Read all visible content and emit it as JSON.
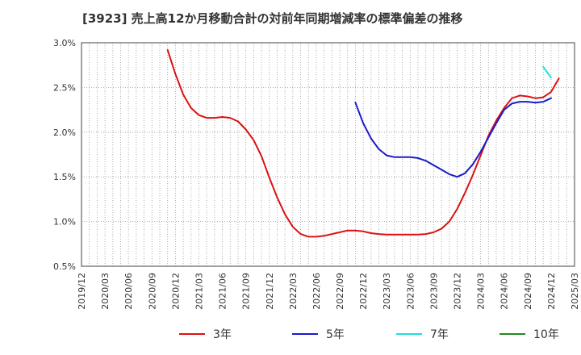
{
  "chart_data": {
    "type": "line",
    "title": "[3923]  売上高12か月移動合計の対前年同期増減率の標準偏差の推移",
    "xlabel": "",
    "ylabel": "",
    "ylim": [
      0.5,
      3.0
    ],
    "y_ticks": [
      0.5,
      1.0,
      1.5,
      2.0,
      2.5,
      3.0
    ],
    "y_tick_labels": [
      "0.5%",
      "1.0%",
      "1.5%",
      "2.0%",
      "2.5%",
      "3.0%"
    ],
    "x_range": [
      "2019/12",
      "2025/03"
    ],
    "x_tick_labels": [
      "2019/12",
      "2020/03",
      "2020/06",
      "2020/09",
      "2020/12",
      "2021/03",
      "2021/06",
      "2021/09",
      "2021/12",
      "2022/03",
      "2022/06",
      "2022/09",
      "2022/12",
      "2023/03",
      "2023/06",
      "2023/09",
      "2023/12",
      "2024/03",
      "2024/06",
      "2024/09",
      "2024/12",
      "2025/03"
    ],
    "grid": true,
    "legend_position": "bottom",
    "series": [
      {
        "name": "3年",
        "color": "#dd1111",
        "points": [
          [
            "2020/11",
            2.92
          ],
          [
            "2020/12",
            2.65
          ],
          [
            "2021/01",
            2.42
          ],
          [
            "2021/02",
            2.27
          ],
          [
            "2021/03",
            2.19
          ],
          [
            "2021/04",
            2.16
          ],
          [
            "2021/05",
            2.16
          ],
          [
            "2021/06",
            2.17
          ],
          [
            "2021/07",
            2.16
          ],
          [
            "2021/08",
            2.12
          ],
          [
            "2021/09",
            2.03
          ],
          [
            "2021/10",
            1.91
          ],
          [
            "2021/11",
            1.73
          ],
          [
            "2021/12",
            1.49
          ],
          [
            "2022/01",
            1.27
          ],
          [
            "2022/02",
            1.08
          ],
          [
            "2022/03",
            0.94
          ],
          [
            "2022/04",
            0.86
          ],
          [
            "2022/05",
            0.83
          ],
          [
            "2022/06",
            0.83
          ],
          [
            "2022/07",
            0.84
          ],
          [
            "2022/08",
            0.86
          ],
          [
            "2022/09",
            0.88
          ],
          [
            "2022/10",
            0.9
          ],
          [
            "2022/11",
            0.9
          ],
          [
            "2022/12",
            0.89
          ],
          [
            "2023/01",
            0.87
          ],
          [
            "2023/02",
            0.86
          ],
          [
            "2023/03",
            0.855
          ],
          [
            "2023/04",
            0.855
          ],
          [
            "2023/05",
            0.855
          ],
          [
            "2023/06",
            0.855
          ],
          [
            "2023/07",
            0.855
          ],
          [
            "2023/08",
            0.86
          ],
          [
            "2023/09",
            0.88
          ],
          [
            "2023/10",
            0.92
          ],
          [
            "2023/11",
            1.0
          ],
          [
            "2023/12",
            1.14
          ],
          [
            "2024/01",
            1.32
          ],
          [
            "2024/02",
            1.52
          ],
          [
            "2024/03",
            1.74
          ],
          [
            "2024/04",
            1.96
          ],
          [
            "2024/05",
            2.13
          ],
          [
            "2024/06",
            2.27
          ],
          [
            "2024/07",
            2.38
          ],
          [
            "2024/08",
            2.41
          ],
          [
            "2024/09",
            2.4
          ],
          [
            "2024/10",
            2.38
          ],
          [
            "2024/11",
            2.39
          ],
          [
            "2024/12",
            2.45
          ],
          [
            "2025/01",
            2.6
          ]
        ]
      },
      {
        "name": "5年",
        "color": "#1a1acc",
        "points": [
          [
            "2022/11",
            2.33
          ],
          [
            "2022/12",
            2.1
          ],
          [
            "2023/01",
            1.93
          ],
          [
            "2023/02",
            1.81
          ],
          [
            "2023/03",
            1.74
          ],
          [
            "2023/04",
            1.72
          ],
          [
            "2023/05",
            1.72
          ],
          [
            "2023/06",
            1.72
          ],
          [
            "2023/07",
            1.71
          ],
          [
            "2023/08",
            1.68
          ],
          [
            "2023/09",
            1.63
          ],
          [
            "2023/10",
            1.58
          ],
          [
            "2023/11",
            1.53
          ],
          [
            "2023/12",
            1.5
          ],
          [
            "2024/01",
            1.54
          ],
          [
            "2024/02",
            1.64
          ],
          [
            "2024/03",
            1.78
          ],
          [
            "2024/04",
            1.94
          ],
          [
            "2024/05",
            2.1
          ],
          [
            "2024/06",
            2.25
          ],
          [
            "2024/07",
            2.32
          ],
          [
            "2024/08",
            2.34
          ],
          [
            "2024/09",
            2.34
          ],
          [
            "2024/10",
            2.33
          ],
          [
            "2024/11",
            2.34
          ],
          [
            "2024/12",
            2.38
          ]
        ]
      },
      {
        "name": "7年",
        "color": "#22dddd",
        "points": [
          [
            "2024/11",
            2.73
          ],
          [
            "2024/12",
            2.61
          ]
        ]
      },
      {
        "name": "10年",
        "color": "#228822",
        "points": []
      }
    ]
  }
}
